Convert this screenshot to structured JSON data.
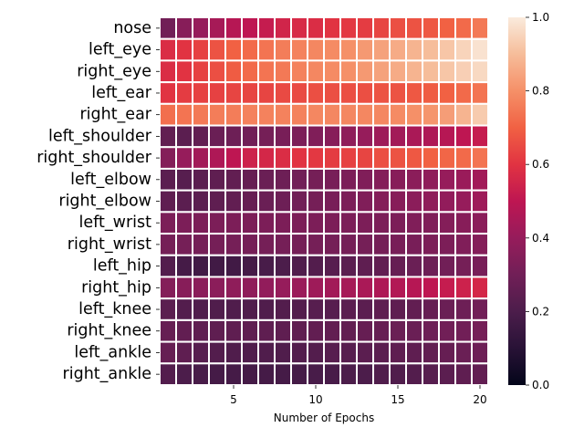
{
  "chart_data": {
    "type": "heatmap",
    "title": "",
    "xlabel": "Number of Epochs",
    "ylabel": "",
    "x": [
      1,
      2,
      3,
      4,
      5,
      6,
      7,
      8,
      9,
      10,
      11,
      12,
      13,
      14,
      15,
      16,
      17,
      18,
      19,
      20
    ],
    "x_ticks": [
      5,
      10,
      15,
      20
    ],
    "rows": [
      "nose",
      "left_eye",
      "right_eye",
      "left_ear",
      "right_ear",
      "left_shoulder",
      "right_shoulder",
      "left_elbow",
      "right_elbow",
      "left_wrist",
      "right_wrist",
      "left_hip",
      "right_hip",
      "left_knee",
      "right_knee",
      "left_ankle",
      "right_ankle"
    ],
    "values": [
      [
        0.3,
        0.36,
        0.4,
        0.44,
        0.48,
        0.5,
        0.52,
        0.55,
        0.57,
        0.58,
        0.6,
        0.61,
        0.62,
        0.64,
        0.66,
        0.67,
        0.68,
        0.7,
        0.72,
        0.75
      ],
      [
        0.58,
        0.6,
        0.63,
        0.67,
        0.7,
        0.72,
        0.74,
        0.76,
        0.77,
        0.78,
        0.79,
        0.8,
        0.82,
        0.84,
        0.86,
        0.88,
        0.9,
        0.92,
        0.95,
        0.98
      ],
      [
        0.58,
        0.6,
        0.63,
        0.66,
        0.69,
        0.72,
        0.74,
        0.75,
        0.77,
        0.78,
        0.79,
        0.8,
        0.82,
        0.84,
        0.86,
        0.88,
        0.9,
        0.92,
        0.94,
        0.96
      ],
      [
        0.6,
        0.62,
        0.63,
        0.63,
        0.64,
        0.64,
        0.64,
        0.65,
        0.65,
        0.66,
        0.66,
        0.66,
        0.66,
        0.67,
        0.67,
        0.68,
        0.69,
        0.7,
        0.72,
        0.74
      ],
      [
        0.73,
        0.74,
        0.75,
        0.76,
        0.76,
        0.77,
        0.77,
        0.77,
        0.77,
        0.78,
        0.78,
        0.78,
        0.78,
        0.78,
        0.79,
        0.8,
        0.81,
        0.83,
        0.88,
        0.93
      ],
      [
        0.26,
        0.24,
        0.26,
        0.28,
        0.29,
        0.3,
        0.31,
        0.32,
        0.33,
        0.34,
        0.36,
        0.38,
        0.4,
        0.42,
        0.43,
        0.45,
        0.46,
        0.48,
        0.5,
        0.52
      ],
      [
        0.35,
        0.4,
        0.43,
        0.46,
        0.5,
        0.54,
        0.56,
        0.58,
        0.6,
        0.61,
        0.62,
        0.63,
        0.64,
        0.66,
        0.67,
        0.68,
        0.7,
        0.71,
        0.72,
        0.74
      ],
      [
        0.24,
        0.23,
        0.24,
        0.25,
        0.26,
        0.27,
        0.28,
        0.29,
        0.3,
        0.31,
        0.32,
        0.33,
        0.34,
        0.35,
        0.36,
        0.37,
        0.38,
        0.4,
        0.41,
        0.43
      ],
      [
        0.25,
        0.24,
        0.24,
        0.25,
        0.26,
        0.27,
        0.28,
        0.29,
        0.3,
        0.31,
        0.32,
        0.33,
        0.34,
        0.35,
        0.36,
        0.37,
        0.38,
        0.39,
        0.4,
        0.42
      ],
      [
        0.33,
        0.33,
        0.33,
        0.33,
        0.33,
        0.33,
        0.33,
        0.33,
        0.33,
        0.33,
        0.33,
        0.33,
        0.33,
        0.33,
        0.33,
        0.34,
        0.34,
        0.35,
        0.36,
        0.37
      ],
      [
        0.31,
        0.31,
        0.31,
        0.31,
        0.31,
        0.31,
        0.31,
        0.31,
        0.31,
        0.31,
        0.31,
        0.31,
        0.31,
        0.31,
        0.32,
        0.32,
        0.33,
        0.33,
        0.34,
        0.35
      ],
      [
        0.22,
        0.18,
        0.17,
        0.17,
        0.17,
        0.18,
        0.19,
        0.2,
        0.21,
        0.22,
        0.23,
        0.24,
        0.25,
        0.26,
        0.27,
        0.28,
        0.29,
        0.3,
        0.31,
        0.32
      ],
      [
        0.35,
        0.36,
        0.37,
        0.37,
        0.38,
        0.38,
        0.39,
        0.4,
        0.41,
        0.42,
        0.43,
        0.44,
        0.45,
        0.46,
        0.47,
        0.48,
        0.5,
        0.52,
        0.54,
        0.56
      ],
      [
        0.24,
        0.22,
        0.21,
        0.21,
        0.21,
        0.21,
        0.21,
        0.22,
        0.22,
        0.23,
        0.23,
        0.24,
        0.24,
        0.25,
        0.25,
        0.26,
        0.27,
        0.28,
        0.29,
        0.3
      ],
      [
        0.27,
        0.26,
        0.25,
        0.25,
        0.25,
        0.25,
        0.25,
        0.25,
        0.25,
        0.26,
        0.26,
        0.26,
        0.27,
        0.27,
        0.28,
        0.28,
        0.29,
        0.3,
        0.3,
        0.31
      ],
      [
        0.27,
        0.25,
        0.23,
        0.22,
        0.21,
        0.21,
        0.21,
        0.21,
        0.22,
        0.22,
        0.23,
        0.23,
        0.24,
        0.24,
        0.25,
        0.25,
        0.26,
        0.27,
        0.28,
        0.29
      ],
      [
        0.22,
        0.2,
        0.19,
        0.18,
        0.18,
        0.18,
        0.18,
        0.18,
        0.18,
        0.19,
        0.19,
        0.2,
        0.2,
        0.21,
        0.21,
        0.22,
        0.23,
        0.24,
        0.25,
        0.26
      ]
    ],
    "colorbar": {
      "min": 0.0,
      "max": 1.0,
      "ticks": [
        "0.0",
        "0.2",
        "0.4",
        "0.6",
        "0.8",
        "1.0"
      ],
      "colormap": "rocket"
    },
    "grid": false,
    "legend": "colorbar-right"
  }
}
